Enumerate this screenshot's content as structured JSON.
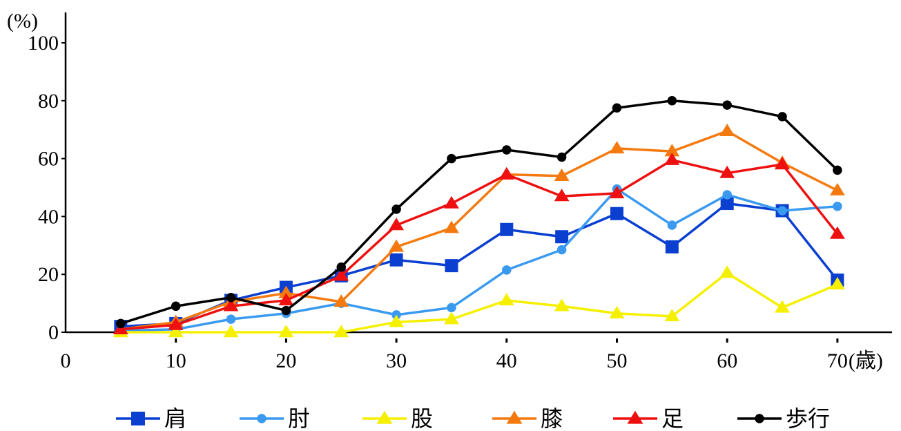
{
  "chart_data": {
    "type": "line",
    "x_unit_label": "(歳)",
    "y_unit_label": "(%)",
    "x": [
      5,
      10,
      15,
      20,
      25,
      30,
      35,
      40,
      45,
      50,
      55,
      60,
      65,
      70
    ],
    "x_ticks": [
      0,
      10,
      20,
      30,
      40,
      50,
      60,
      70
    ],
    "y_ticks": [
      0,
      20,
      40,
      60,
      80,
      100
    ],
    "xlim": [
      0,
      75
    ],
    "ylim": [
      0,
      100
    ],
    "grid": false,
    "legend_position": "bottom",
    "series": [
      {
        "name": "肩",
        "color": "#0a3fd0",
        "marker": "square",
        "values": [
          2,
          3,
          11,
          15.5,
          19.5,
          25,
          23,
          35.5,
          33,
          41,
          29.5,
          44.5,
          42,
          18
        ]
      },
      {
        "name": "肘",
        "color": "#3a9af0",
        "marker": "circle",
        "values": [
          0.5,
          1,
          4.5,
          6.5,
          10,
          6,
          8.5,
          21.5,
          28.5,
          49.5,
          37,
          47.5,
          42,
          43.5
        ]
      },
      {
        "name": "股",
        "color": "#f5f000",
        "marker": "triangle",
        "values": [
          0,
          0,
          0,
          0,
          0,
          3.5,
          4.5,
          11,
          9,
          6.5,
          5.5,
          20.5,
          8.5,
          16.5
        ]
      },
      {
        "name": "膝",
        "color": "#f47a10",
        "marker": "triangle",
        "values": [
          1,
          3.5,
          10.5,
          13.5,
          10.5,
          29.5,
          36,
          54.5,
          54,
          63.5,
          62.5,
          69.5,
          58.5,
          49
        ]
      },
      {
        "name": "足",
        "color": "#ee1010",
        "marker": "triangle",
        "values": [
          1,
          2.5,
          9,
          11,
          19.5,
          37,
          44.5,
          54.5,
          47,
          48,
          59.5,
          55,
          58,
          34
        ]
      },
      {
        "name": "歩行",
        "color": "#000000",
        "marker": "circle",
        "values": [
          3,
          9,
          12,
          7.5,
          22.5,
          42.5,
          60,
          63,
          60.5,
          77.5,
          80,
          78.5,
          74.5,
          56
        ]
      }
    ]
  }
}
